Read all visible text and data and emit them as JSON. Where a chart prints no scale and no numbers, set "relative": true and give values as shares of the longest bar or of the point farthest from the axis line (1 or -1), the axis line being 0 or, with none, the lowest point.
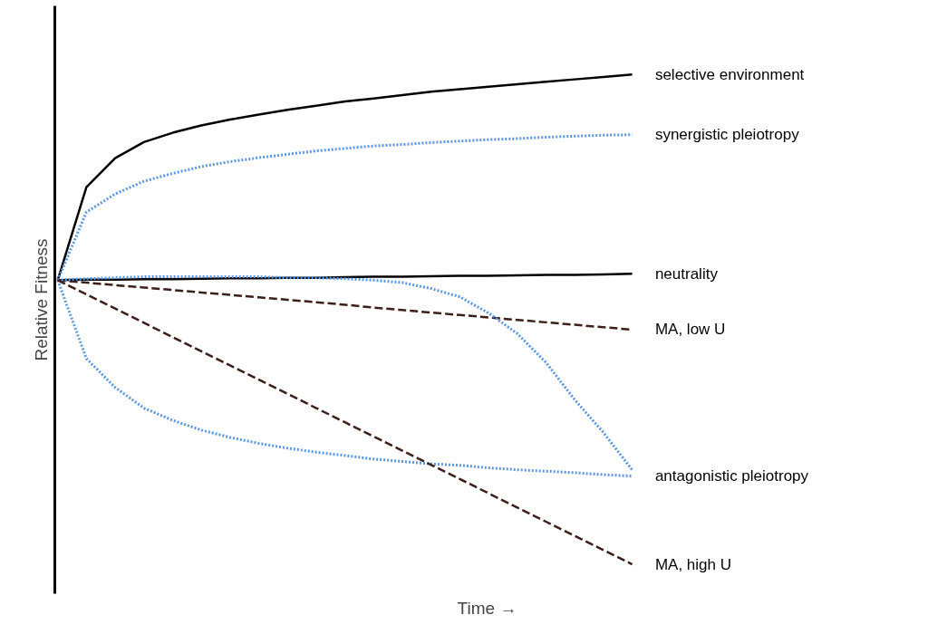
{
  "chart_data": {
    "type": "line",
    "relative": true,
    "xlabel": "Time →",
    "ylabel": "Relative Fitness",
    "marker": "none",
    "categories": [
      null,
      null,
      null,
      null,
      null,
      null,
      null,
      null,
      null,
      null,
      null,
      null,
      null,
      null,
      null,
      null,
      null,
      null,
      null,
      null,
      null
    ],
    "series": [
      {
        "name": "selective environment",
        "color": "#000000",
        "line_style": "solid",
        "values": [
          0.58,
          0.77,
          0.829,
          0.862,
          0.881,
          0.896,
          0.908,
          0.918,
          0.928,
          0.936,
          0.945,
          0.951,
          0.958,
          0.965,
          0.97,
          0.975,
          0.98,
          0.985,
          0.99,
          0.995,
          1.0
        ]
      },
      {
        "name": "synergistic pleiotropy",
        "color": "#5b97e0",
        "line_style": "dotted",
        "values": [
          0.58,
          0.719,
          0.756,
          0.782,
          0.798,
          0.812,
          0.822,
          0.83,
          0.837,
          0.844,
          0.849,
          0.854,
          0.857,
          0.861,
          0.864,
          0.867,
          0.869,
          0.872,
          0.874,
          0.876,
          0.877
        ]
      },
      {
        "name": "neutrality",
        "color": "#000000",
        "line_style": "solid",
        "values": [
          0.58,
          0.581,
          0.581,
          0.582,
          0.582,
          0.583,
          0.584,
          0.584,
          0.585,
          0.585,
          0.586,
          0.587,
          0.587,
          0.588,
          0.589,
          0.589,
          0.59,
          0.591,
          0.591,
          0.592,
          0.593
        ]
      },
      {
        "name": "MA, low U",
        "color": "#3b1f1a",
        "line_style": "dashed",
        "values": [
          0.58,
          0.575,
          0.57,
          0.565,
          0.56,
          0.555,
          0.55,
          0.545,
          0.54,
          0.535,
          0.53,
          0.524,
          0.519,
          0.514,
          0.509,
          0.504,
          0.499,
          0.494,
          0.489,
          0.484,
          0.479
        ]
      },
      {
        "color": "#5b97e0",
        "line_style": "dotted",
        "values": [
          0.58,
          0.583,
          0.585,
          0.587,
          0.587,
          0.587,
          0.587,
          0.587,
          0.585,
          0.585,
          0.583,
          0.58,
          0.575,
          0.563,
          0.546,
          0.513,
          0.471,
          0.412,
          0.336,
          0.269,
          0.193
        ]
      },
      {
        "name": "antagonistic pleiotropy",
        "color": "#5b97e0",
        "line_style": "dotted",
        "values": [
          0.58,
          0.42,
          0.361,
          0.319,
          0.294,
          0.274,
          0.259,
          0.247,
          0.237,
          0.229,
          0.222,
          0.215,
          0.21,
          0.205,
          0.202,
          0.197,
          0.193,
          0.19,
          0.187,
          0.183,
          0.18
        ]
      },
      {
        "name": "MA, high U",
        "color": "#3b1f1a",
        "line_style": "dashed",
        "values": [
          0.58,
          0.551,
          0.522,
          0.493,
          0.464,
          0.435,
          0.406,
          0.377,
          0.348,
          0.319,
          0.29,
          0.261,
          0.232,
          0.203,
          0.174,
          0.145,
          0.116,
          0.087,
          0.058,
          0.029,
          0.0
        ]
      }
    ]
  }
}
